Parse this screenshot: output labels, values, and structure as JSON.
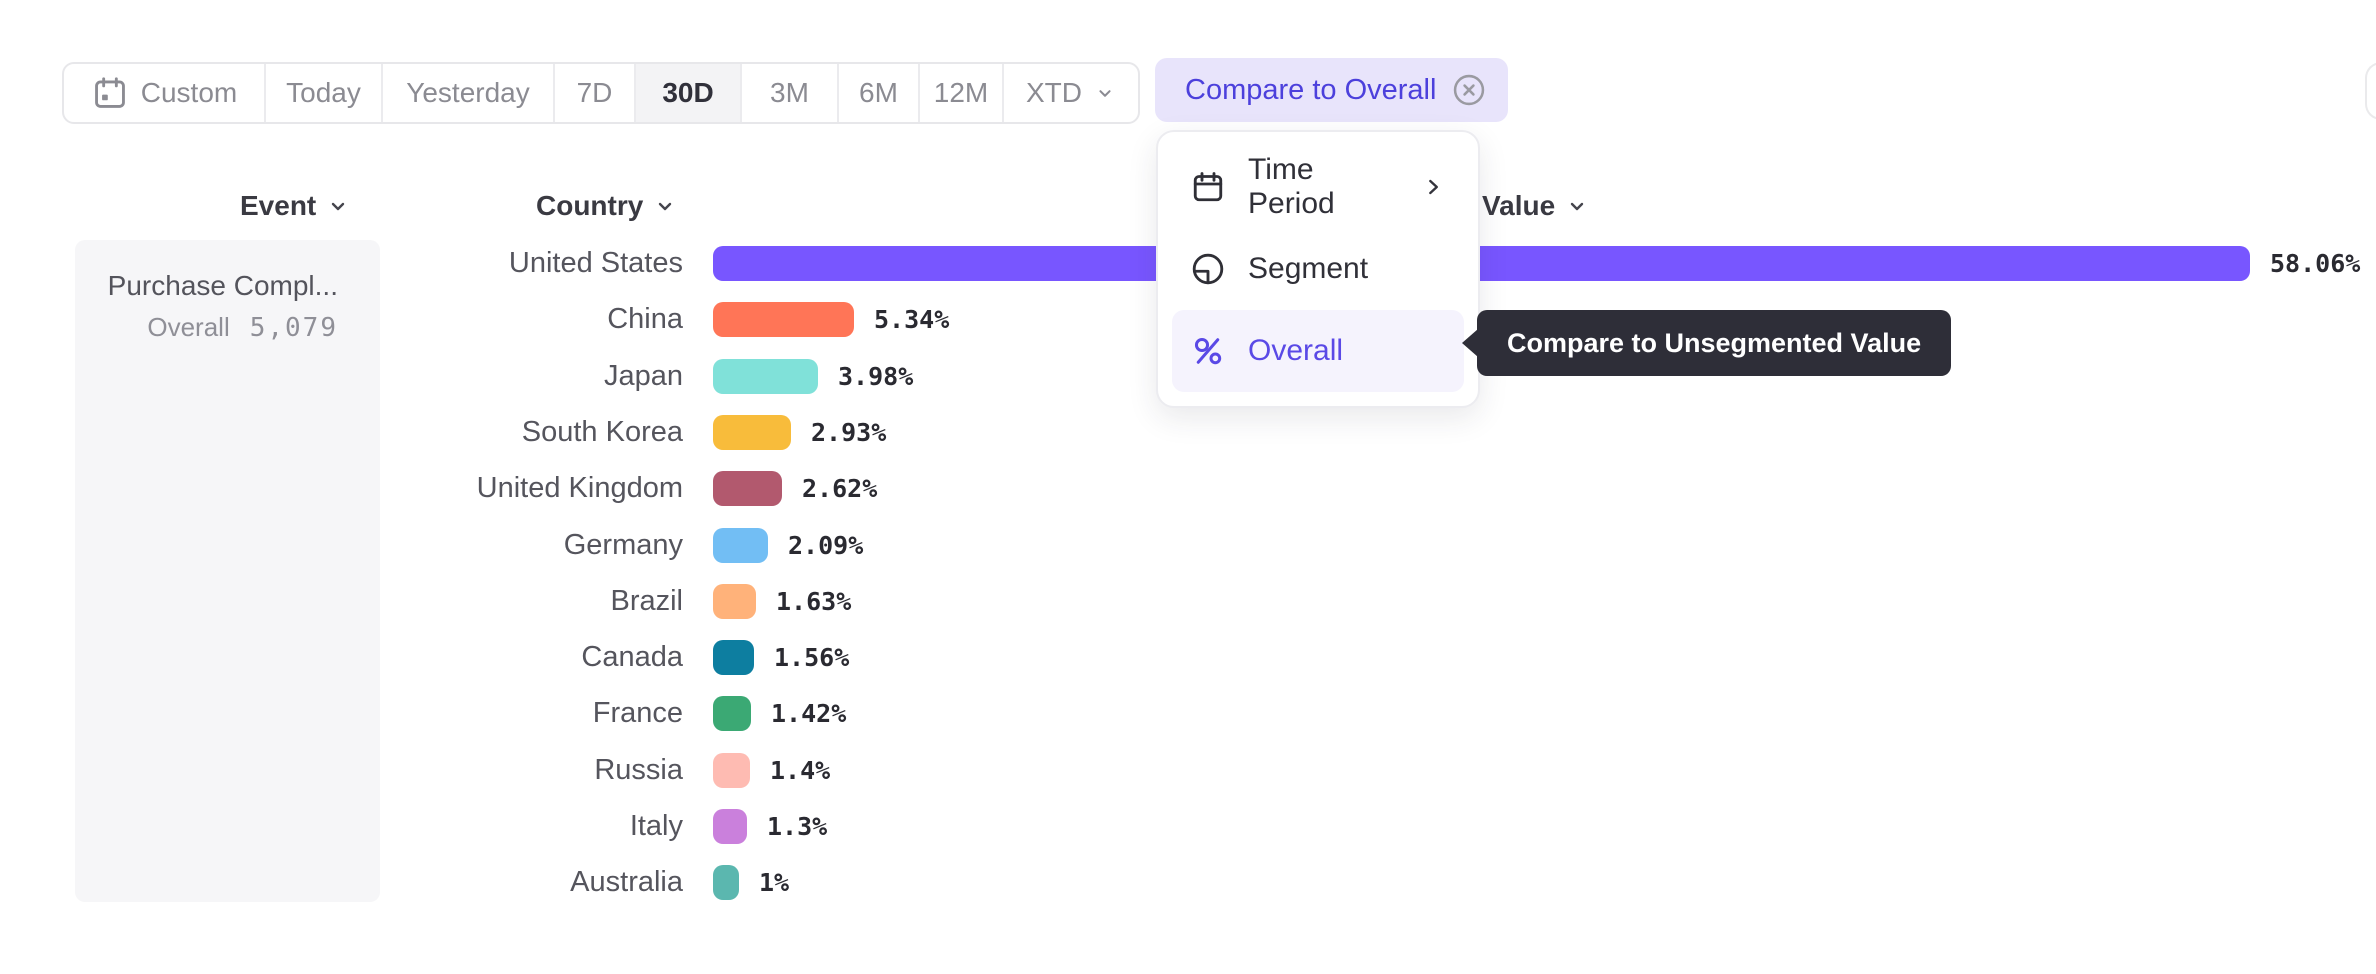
{
  "toolbar": {
    "items": [
      {
        "label": "Custom",
        "icon": "calendar-icon"
      },
      {
        "label": "Today"
      },
      {
        "label": "Yesterday"
      },
      {
        "label": "7D"
      },
      {
        "label": "30D"
      },
      {
        "label": "3M"
      },
      {
        "label": "6M"
      },
      {
        "label": "12M"
      },
      {
        "label": "XTD",
        "icon": "chevron-down-icon"
      }
    ],
    "selected": "30D"
  },
  "compare_chip": {
    "label": "Compare to Overall",
    "remove_icon": "circle-x-icon"
  },
  "dropdown_menu": {
    "items": [
      {
        "label": "Time Period",
        "icon": "calendar-icon",
        "has_submenu": true
      },
      {
        "label": "Segment",
        "icon": "segment-icon"
      },
      {
        "label": "Overall",
        "icon": "percent-icon",
        "selected": true
      }
    ]
  },
  "tooltip": {
    "text": "Compare to Unsegmented Value"
  },
  "columns": {
    "event": "Event",
    "country": "Country",
    "value": "Value",
    "sort_icon": "chevron-down-icon"
  },
  "event_panel": {
    "title": "Purchase Compl...",
    "overall_label": "Overall",
    "overall_value": "5,079"
  },
  "colors": {
    "accent_purple": "#5A49E6",
    "chip_bg": "#E8E4FB",
    "chip_text": "#4C40DC",
    "menu_highlight": "#F5F3FD",
    "tooltip_bg": "#2E2E38",
    "selected_range_bg": "#F3F3F5"
  },
  "chart_data": {
    "type": "bar",
    "orientation": "horizontal",
    "title": "",
    "xlabel": "",
    "ylabel": "Country",
    "legend": false,
    "grid": false,
    "xlim": [
      0,
      58.06
    ],
    "categories": [
      "United States",
      "China",
      "Japan",
      "South Korea",
      "United Kingdom",
      "Germany",
      "Brazil",
      "Canada",
      "France",
      "Russia",
      "Italy",
      "Australia"
    ],
    "values": [
      58.06,
      5.34,
      3.98,
      2.93,
      2.62,
      2.09,
      1.63,
      1.56,
      1.42,
      1.4,
      1.3,
      1
    ],
    "value_labels": [
      "58.06%",
      "5.34%",
      "3.98%",
      "2.93%",
      "2.62%",
      "2.09%",
      "1.63%",
      "1.56%",
      "1.42%",
      "1.4%",
      "1.3%",
      "1%"
    ],
    "colors": [
      "#7856FF",
      "#FF7557",
      "#80E1D9",
      "#F8BC3B",
      "#B2596E",
      "#72BEF4",
      "#FFB27A",
      "#0D7EA0",
      "#3BA974",
      "#FEBBB2",
      "#CA80DC",
      "#5BB7AF"
    ]
  }
}
